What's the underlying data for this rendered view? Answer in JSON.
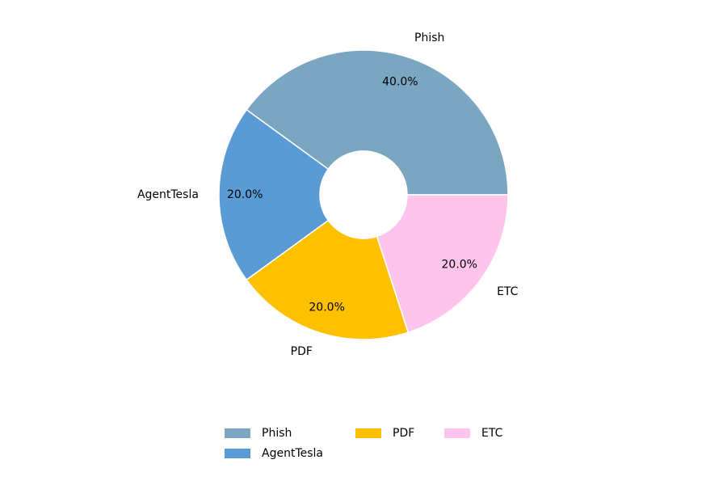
{
  "chart_data": {
    "type": "donut",
    "categories": [
      "Phish",
      "AgentTesla",
      "PDF",
      "ETC"
    ],
    "values": [
      40,
      20,
      20,
      20
    ],
    "value_labels": [
      "40.0%",
      "20.0%",
      "20.0%",
      "20.0%"
    ],
    "colors": [
      "#7aa6c2",
      "#5b9bd5",
      "#ffc000",
      "#ffc4ec"
    ],
    "legend": "lower center"
  }
}
